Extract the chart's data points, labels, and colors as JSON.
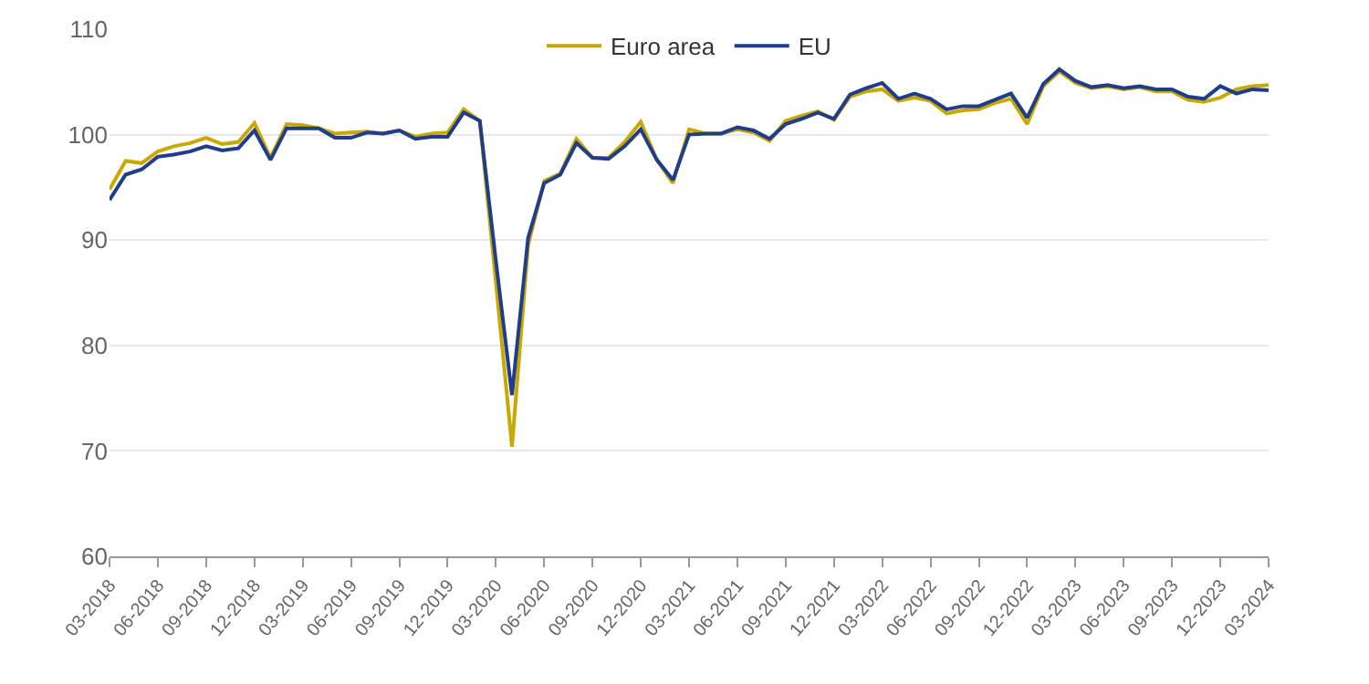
{
  "chart_data": {
    "type": "line",
    "categories": [
      "03-2018",
      null,
      null,
      "06-2018",
      null,
      null,
      "09-2018",
      null,
      null,
      "12-2018",
      null,
      null,
      "03-2019",
      null,
      null,
      "06-2019",
      null,
      null,
      "09-2019",
      null,
      null,
      "12-2019",
      null,
      null,
      "03-2020",
      null,
      null,
      "06-2020",
      null,
      null,
      "09-2020",
      null,
      null,
      "12-2020",
      null,
      null,
      "03-2021",
      null,
      null,
      "06-2021",
      null,
      null,
      "09-2021",
      null,
      null,
      "12-2021",
      null,
      null,
      "03-2022",
      null,
      null,
      "06-2022",
      null,
      null,
      "09-2022",
      null,
      null,
      "12-2022",
      null,
      null,
      "03-2023",
      null,
      null,
      "06-2023",
      null,
      null,
      "09-2023",
      null,
      null,
      "12-2023",
      null,
      null,
      "03-2024"
    ],
    "series": [
      {
        "name": "Euro area",
        "color": "#c9a800",
        "values": [
          94.8,
          97.5,
          97.3,
          98.4,
          98.9,
          99.2,
          99.7,
          99.1,
          99.3,
          101.1,
          97.8,
          101.0,
          100.9,
          100.6,
          100.1,
          100.2,
          100.3,
          100.1,
          100.4,
          99.8,
          100.1,
          100.2,
          102.4,
          101.3,
          86.0,
          70.4,
          89.5,
          95.6,
          96.3,
          99.6,
          97.8,
          97.8,
          99.3,
          101.2,
          97.6,
          95.4,
          100.5,
          100.1,
          100.1,
          100.5,
          100.2,
          99.4,
          101.3,
          101.8,
          102.2,
          101.4,
          103.6,
          104.1,
          104.3,
          103.2,
          103.5,
          103.2,
          102.0,
          102.3,
          102.4,
          103.0,
          103.4,
          101.0,
          104.6,
          106.0,
          104.9,
          104.4,
          104.6,
          104.3,
          104.5,
          104.1,
          104.1,
          103.3,
          103.1,
          103.5,
          104.3,
          104.6,
          104.7
        ]
      },
      {
        "name": "EU",
        "color": "#1f3d8a",
        "values": [
          93.8,
          96.2,
          96.7,
          97.9,
          98.1,
          98.4,
          98.9,
          98.5,
          98.7,
          100.4,
          97.6,
          100.6,
          100.6,
          100.6,
          99.7,
          99.7,
          100.2,
          100.1,
          100.4,
          99.6,
          99.8,
          99.8,
          102.1,
          101.3,
          88.0,
          75.3,
          90.2,
          95.4,
          96.2,
          99.2,
          97.8,
          97.7,
          98.9,
          100.5,
          97.6,
          95.7,
          100.0,
          100.1,
          100.1,
          100.7,
          100.4,
          99.6,
          101.0,
          101.5,
          102.1,
          101.5,
          103.8,
          104.4,
          104.9,
          103.4,
          103.9,
          103.4,
          102.4,
          102.7,
          102.7,
          103.3,
          103.9,
          101.6,
          104.8,
          106.2,
          105.1,
          104.5,
          104.7,
          104.4,
          104.6,
          104.3,
          104.3,
          103.6,
          103.4,
          104.6,
          103.9,
          104.3,
          104.2
        ]
      }
    ],
    "ylim": [
      60,
      110
    ],
    "yticks": [
      60,
      70,
      80,
      90,
      100,
      110
    ],
    "grid": "y",
    "legend": "top",
    "marker": "none",
    "line_style": "solid"
  }
}
